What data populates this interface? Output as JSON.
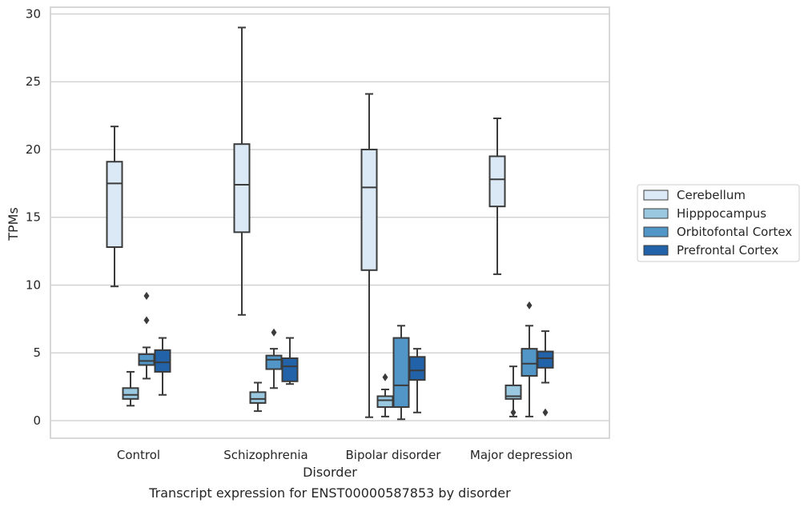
{
  "chart_data": {
    "type": "boxplot",
    "title": "",
    "caption": "Transcript expression for ENST00000587853 by disorder",
    "xlabel": "Disorder",
    "ylabel": "TPMs",
    "ylim": [
      -1.3,
      30.5
    ],
    "yticks": [
      0,
      5,
      10,
      15,
      20,
      25,
      30
    ],
    "grid": "horizontal",
    "legend_position": "right",
    "categories": [
      "Control",
      "Schizophrenia",
      "Bipolar disorder",
      "Major depression"
    ],
    "series": [
      {
        "name": "Cerebellum",
        "color": "#dbe9f6",
        "boxes": [
          {
            "whislo": 9.9,
            "q1": 12.8,
            "med": 17.5,
            "q3": 19.1,
            "whishi": 21.7,
            "fliers": []
          },
          {
            "whislo": 7.8,
            "q1": 13.9,
            "med": 17.4,
            "q3": 20.4,
            "whishi": 29.0,
            "fliers": []
          },
          {
            "whislo": 0.25,
            "q1": 11.1,
            "med": 17.2,
            "q3": 20.0,
            "whishi": 24.1,
            "fliers": []
          },
          {
            "whislo": 10.8,
            "q1": 15.8,
            "med": 17.8,
            "q3": 19.5,
            "whishi": 22.3,
            "fliers": []
          }
        ]
      },
      {
        "name": "Hipppocampus",
        "color": "#9ac8e0",
        "boxes": [
          {
            "whislo": 1.1,
            "q1": 1.6,
            "med": 1.9,
            "q3": 2.4,
            "whishi": 3.6,
            "fliers": []
          },
          {
            "whislo": 0.7,
            "q1": 1.3,
            "med": 1.6,
            "q3": 2.1,
            "whishi": 2.8,
            "fliers": []
          },
          {
            "whislo": 0.3,
            "q1": 1.0,
            "med": 1.5,
            "q3": 1.8,
            "whishi": 2.3,
            "fliers": [
              3.2
            ]
          },
          {
            "whislo": 0.3,
            "q1": 1.6,
            "med": 1.8,
            "q3": 2.6,
            "whishi": 4.0,
            "fliers": [
              0.6
            ]
          }
        ]
      },
      {
        "name": "Orbitofontal Cortex",
        "color": "#5296c7",
        "boxes": [
          {
            "whislo": 3.1,
            "q1": 4.1,
            "med": 4.4,
            "q3": 4.9,
            "whishi": 5.4,
            "fliers": [
              7.4,
              9.2
            ]
          },
          {
            "whislo": 2.4,
            "q1": 3.8,
            "med": 4.5,
            "q3": 4.8,
            "whishi": 5.3,
            "fliers": [
              6.5
            ]
          },
          {
            "whislo": 0.1,
            "q1": 1.0,
            "med": 2.6,
            "q3": 6.1,
            "whishi": 7.0,
            "fliers": []
          },
          {
            "whislo": 0.3,
            "q1": 3.3,
            "med": 4.2,
            "q3": 5.3,
            "whishi": 7.0,
            "fliers": [
              8.5
            ]
          }
        ]
      },
      {
        "name": "Prefrontal Cortex",
        "color": "#2262a8",
        "boxes": [
          {
            "whislo": 1.9,
            "q1": 3.6,
            "med": 4.3,
            "q3": 5.2,
            "whishi": 6.1,
            "fliers": []
          },
          {
            "whislo": 2.7,
            "q1": 2.9,
            "med": 4.0,
            "q3": 4.6,
            "whishi": 6.1,
            "fliers": []
          },
          {
            "whislo": 0.6,
            "q1": 3.0,
            "med": 3.7,
            "q3": 4.7,
            "whishi": 5.3,
            "fliers": []
          },
          {
            "whislo": 2.8,
            "q1": 3.9,
            "med": 4.6,
            "q3": 5.1,
            "whishi": 6.6,
            "fliers": [
              0.6
            ]
          }
        ]
      }
    ]
  },
  "colors": {
    "grid": "#cccccc",
    "spine": "#cccccc",
    "box_edge": "#3b3b3b",
    "text": "#262626"
  }
}
